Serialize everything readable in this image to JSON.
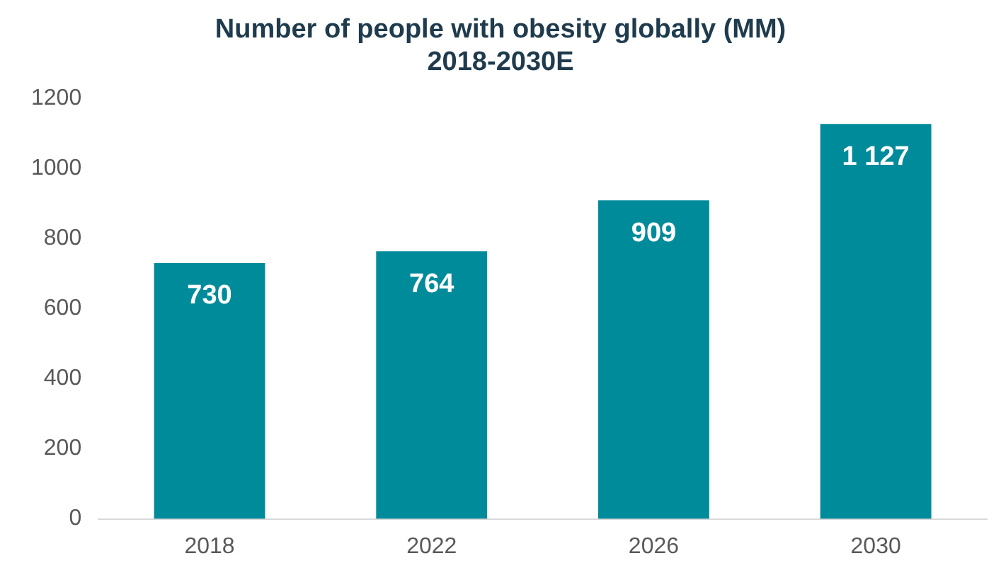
{
  "chart_data": {
    "type": "bar",
    "title": "Number of people with obesity globally (MM)",
    "subtitle": "2018-2030E",
    "categories": [
      "2018",
      "2022",
      "2026",
      "2030"
    ],
    "values": [
      730,
      764,
      909,
      1127
    ],
    "value_labels": [
      "730",
      "764",
      "909",
      "1 127"
    ],
    "color": "#008b9b",
    "ylim": [
      0,
      1200
    ],
    "yticks": [
      0,
      200,
      400,
      600,
      800,
      1000,
      1200
    ],
    "grid": false,
    "legend": false
  }
}
